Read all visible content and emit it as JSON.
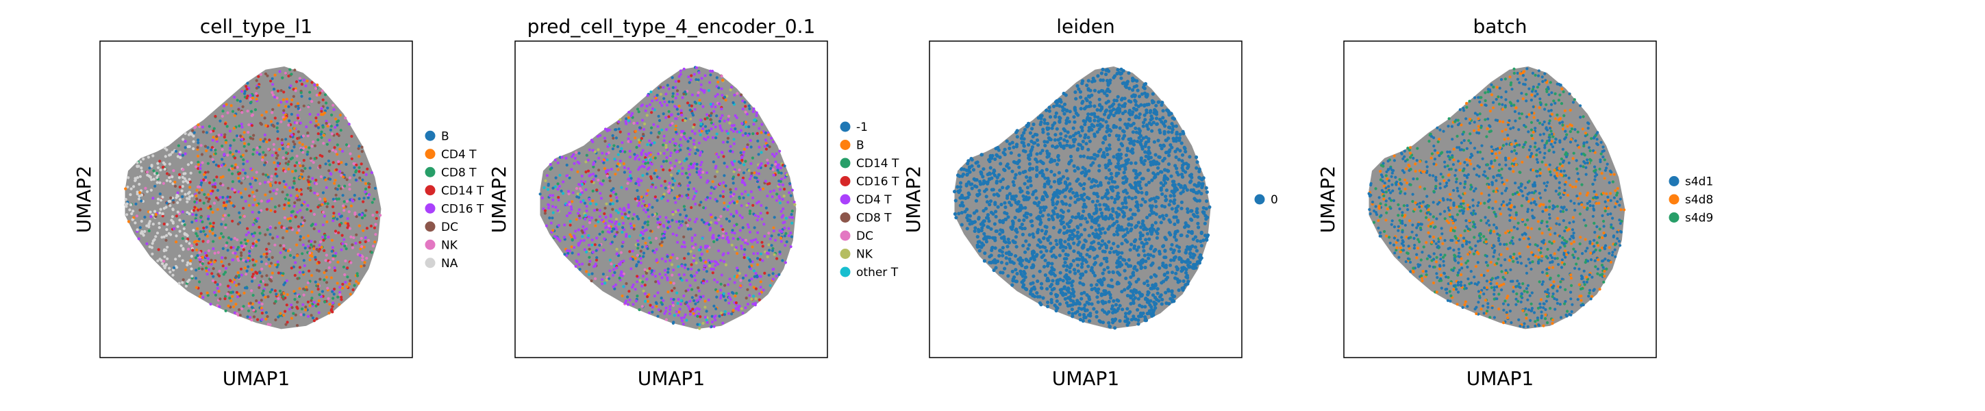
{
  "chart_data": [
    {
      "type": "scatter",
      "title": "cell_type_l1",
      "xlabel": "UMAP1",
      "ylabel": "UMAP2",
      "grid": false,
      "ticks": false,
      "legend_placement": "right",
      "categories": [
        "B",
        "CD4 T",
        "CD8 T",
        "CD14 T",
        "CD16 T",
        "DC",
        "NK",
        "NA"
      ],
      "colors": [
        "#1f77b4",
        "#ff7f0e",
        "#279e68",
        "#d62728",
        "#aa40fc",
        "#8c564b",
        "#e377c2",
        "#d3d3d3"
      ],
      "background_color": "#808080"
    },
    {
      "type": "scatter",
      "title": "pred_cell_type_4_encoder_0.1",
      "xlabel": "UMAP1",
      "ylabel": "UMAP2",
      "grid": false,
      "ticks": false,
      "legend_placement": "right",
      "categories": [
        "-1",
        "B",
        "CD14 T",
        "CD16 T",
        "CD4 T",
        "CD8 T",
        "DC",
        "NK",
        "other T"
      ],
      "colors": [
        "#1f77b4",
        "#ff7f0e",
        "#279e68",
        "#d62728",
        "#aa40fc",
        "#8c564b",
        "#e377c2",
        "#b5bd61",
        "#17becf"
      ],
      "background_color": "#808080"
    },
    {
      "type": "scatter",
      "title": "leiden",
      "xlabel": "UMAP1",
      "ylabel": "UMAP2",
      "grid": false,
      "ticks": false,
      "legend_placement": "right",
      "categories": [
        "0"
      ],
      "colors": [
        "#1f77b4"
      ],
      "background_color": "#808080"
    },
    {
      "type": "scatter",
      "title": "batch",
      "xlabel": "UMAP1",
      "ylabel": "UMAP2",
      "grid": false,
      "ticks": false,
      "legend_placement": "right",
      "categories": [
        "s4d1",
        "s4d8",
        "s4d9"
      ],
      "colors": [
        "#1f77b4",
        "#ff7f0e",
        "#279e68"
      ],
      "background_color": "#808080"
    }
  ]
}
